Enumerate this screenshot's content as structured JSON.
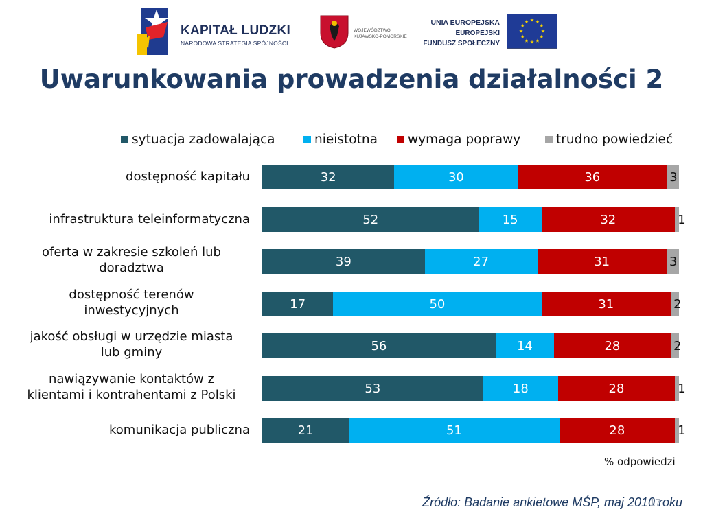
{
  "header": {
    "logos": {
      "kapital_ludzki": {
        "icon": "kapital-ludzki-star-logo",
        "title": "KAPITAŁ LUDZKI",
        "subtitle": "NARODOWA STRATEGIA SPÓJNOŚCI"
      },
      "wojewodztwo": {
        "icon": "kujawsko-pomorskie-coat-of-arms",
        "line1": "WOJEWÓDZTWO",
        "line2": "KUJAWSKO-POMORSKIE"
      },
      "unia": {
        "icon": "eu-flag",
        "line1": "UNIA EUROPEJSKA",
        "line2": "EUROPEJSKI",
        "line3": "FUNDUSZ SPOŁECZNY"
      }
    }
  },
  "slide": {
    "title": "Uwarunkowania prowadzenia działalności 2",
    "source": "Źródło: Badanie ankietowe MŚP, maj 2010 roku",
    "page_number": "17"
  },
  "colors": {
    "sytuacja": "#215868",
    "nieistotna": "#00b0f0",
    "wymaga": "#c00000",
    "trudno": "#a6a6a6",
    "title": "#1f3b63"
  },
  "chart_data": {
    "type": "bar",
    "orientation": "horizontal",
    "stacked": true,
    "unit_label": "% odpowiedzi",
    "legend_position": "top",
    "grid": false,
    "xlim": [
      0,
      100
    ],
    "categories": [
      [
        "dostępność kapitału"
      ],
      [
        "infrastruktura teleinformatyczna"
      ],
      [
        "oferta w zakresie szkoleń lub",
        "doradztwa"
      ],
      [
        "dostępność terenów",
        "inwestycyjnych"
      ],
      [
        "jakość obsługi w urzędzie miasta",
        "lub gminy"
      ],
      [
        "nawiązywanie kontaktów z",
        "klientami i kontrahentami z Polski"
      ],
      [
        "komunikacja publiczna"
      ]
    ],
    "series": [
      {
        "name": "sytuacja zadowalająca",
        "values": [
          32,
          52,
          39,
          17,
          56,
          53,
          21
        ]
      },
      {
        "name": "nieistotna",
        "values": [
          30,
          15,
          27,
          50,
          14,
          18,
          51
        ]
      },
      {
        "name": "wymaga poprawy",
        "values": [
          36,
          32,
          31,
          31,
          28,
          28,
          28
        ]
      },
      {
        "name": "trudno powiedzieć",
        "values": [
          3,
          1,
          3,
          2,
          2,
          1,
          1
        ]
      }
    ]
  }
}
